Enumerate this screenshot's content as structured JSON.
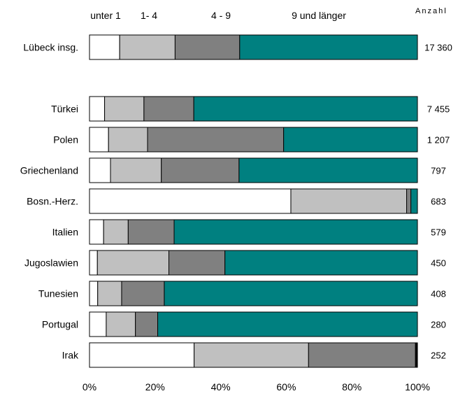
{
  "chart_data": {
    "type": "bar",
    "orientation": "horizontal",
    "stacked": true,
    "percent": true,
    "count_header": "Anzahl",
    "series": [
      {
        "name": "unter 1",
        "color": "#ffffff"
      },
      {
        "name": "1- 4",
        "color": "#c0c0c0"
      },
      {
        "name": "4 - 9",
        "color": "#808080"
      },
      {
        "name": "9 und länger",
        "color": "#008080"
      },
      {
        "name": "",
        "color": "#000000"
      }
    ],
    "categories": [
      {
        "label": "Lübeck insg.",
        "count": "17 360",
        "values": [
          9.2,
          16.9,
          19.7,
          54.2,
          0
        ]
      },
      {
        "label": "Türkei",
        "count": "7 455",
        "values": [
          4.6,
          12.0,
          15.2,
          68.2,
          0
        ]
      },
      {
        "label": "Polen",
        "count": "1 207",
        "values": [
          5.8,
          11.9,
          41.5,
          40.8,
          0
        ]
      },
      {
        "label": "Griechenland",
        "count": "797",
        "values": [
          6.4,
          15.5,
          23.7,
          54.4,
          0
        ]
      },
      {
        "label": "Bosn.-Herz.",
        "count": "683",
        "values": [
          61.4,
          35.3,
          1.3,
          2.0,
          0
        ]
      },
      {
        "label": "Italien",
        "count": "579",
        "values": [
          4.3,
          7.5,
          14.0,
          74.2,
          0
        ]
      },
      {
        "label": "Jugoslawien",
        "count": "450",
        "values": [
          2.4,
          21.8,
          17.1,
          58.7,
          0
        ]
      },
      {
        "label": "Tunesien",
        "count": "408",
        "values": [
          2.5,
          7.3,
          13.0,
          77.2,
          0
        ]
      },
      {
        "label": "Portugal",
        "count": "280",
        "values": [
          5.1,
          8.9,
          6.8,
          79.2,
          0
        ]
      },
      {
        "label": "Irak",
        "count": "252",
        "values": [
          31.9,
          34.9,
          32.6,
          0,
          0.6
        ]
      }
    ],
    "xticks": [
      "0%",
      "20%",
      "40%",
      "60%",
      "80%",
      "100%"
    ],
    "xlim": [
      0,
      100
    ]
  }
}
